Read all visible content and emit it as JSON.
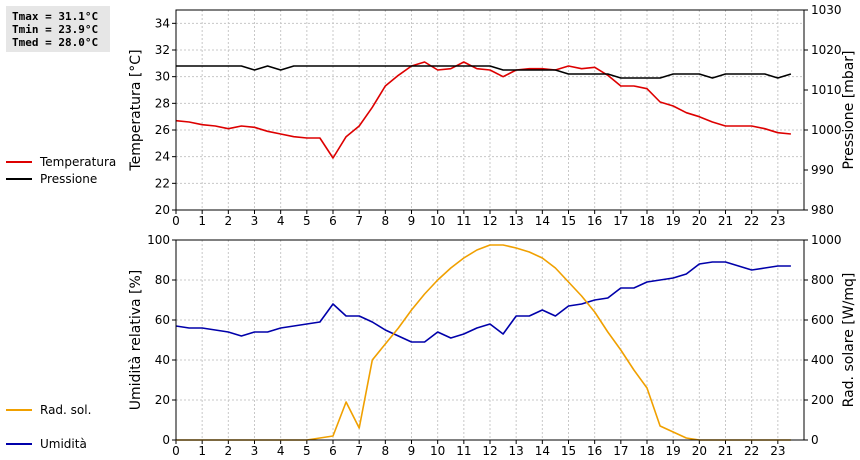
{
  "stats": {
    "tmax": "Tmax = 31.1°C",
    "tmin": "Tmin = 23.9°C",
    "tmed": "Tmed = 28.0°C"
  },
  "chart_data": [
    {
      "type": "line",
      "title": "",
      "xlabel": "",
      "ylabel": "Temperatura [°C]",
      "y2label": "Pressione [mbar]",
      "xlim": [
        0,
        24
      ],
      "xticks": [
        "0",
        "1",
        "2",
        "3",
        "4",
        "5",
        "6",
        "7",
        "8",
        "9",
        "10",
        "11",
        "12",
        "13",
        "14",
        "15",
        "16",
        "17",
        "18",
        "19",
        "20",
        "21",
        "22",
        "23"
      ],
      "ylim": [
        20,
        35
      ],
      "yticks": [
        "20",
        "22",
        "24",
        "26",
        "28",
        "30",
        "32",
        "34"
      ],
      "y2lim": [
        980,
        1030
      ],
      "y2ticks": [
        "980",
        "990",
        "1000",
        "1010",
        "1020",
        "1030"
      ],
      "grid": true,
      "legend": "left",
      "series": [
        {
          "name": "Temperatura",
          "axis": "left",
          "color": "#dd0000",
          "x": [
            0,
            0.5,
            1,
            1.5,
            2,
            2.5,
            3,
            3.5,
            4,
            4.5,
            5,
            5.5,
            6,
            6.5,
            7,
            7.5,
            8,
            8.5,
            9,
            9.5,
            10,
            10.5,
            11,
            11.5,
            12,
            12.5,
            13,
            13.5,
            14,
            14.5,
            15,
            15.5,
            16,
            16.5,
            17,
            17.5,
            18,
            18.5,
            19,
            19.5,
            20,
            20.5,
            21,
            21.5,
            22,
            22.5,
            23,
            23.5
          ],
          "values": [
            26.7,
            26.6,
            26.4,
            26.3,
            26.1,
            26.3,
            26.2,
            25.9,
            25.7,
            25.5,
            25.4,
            25.4,
            23.9,
            25.5,
            26.3,
            27.7,
            29.3,
            30.1,
            30.8,
            31.1,
            30.5,
            30.6,
            31.1,
            30.6,
            30.5,
            30.0,
            30.5,
            30.6,
            30.6,
            30.5,
            30.8,
            30.6,
            30.7,
            30.1,
            29.3,
            29.3,
            29.1,
            28.1,
            27.8,
            27.3,
            27.0,
            26.6,
            26.3,
            26.3,
            26.3,
            26.1,
            25.8,
            25.7
          ]
        },
        {
          "name": "Pressione",
          "axis": "right",
          "color": "#000000",
          "x": [
            0,
            0.5,
            1,
            1.5,
            2,
            2.5,
            3,
            3.5,
            4,
            4.5,
            5,
            5.5,
            6,
            6.5,
            7,
            7.5,
            8,
            8.5,
            9,
            9.5,
            10,
            10.5,
            11,
            11.5,
            12,
            12.5,
            13,
            13.5,
            14,
            14.5,
            15,
            15.5,
            16,
            16.5,
            17,
            17.5,
            18,
            18.5,
            19,
            19.5,
            20,
            20.5,
            21,
            21.5,
            22,
            22.5,
            23,
            23.5
          ],
          "values": [
            1016,
            1016,
            1016,
            1016,
            1016,
            1016,
            1015,
            1016,
            1015,
            1016,
            1016,
            1016,
            1016,
            1016,
            1016,
            1016,
            1016,
            1016,
            1016,
            1016,
            1016,
            1016,
            1016,
            1016,
            1016,
            1015,
            1015,
            1015,
            1015,
            1015,
            1014,
            1014,
            1014,
            1014,
            1013,
            1013,
            1013,
            1013,
            1014,
            1014,
            1014,
            1013,
            1014,
            1014,
            1014,
            1014,
            1013,
            1014
          ]
        }
      ]
    },
    {
      "type": "line",
      "title": "",
      "xlabel": "",
      "ylabel": "Umidità relativa [%]",
      "y2label": "Rad. solare [W/mq]",
      "xlim": [
        0,
        24
      ],
      "xticks": [
        "0",
        "1",
        "2",
        "3",
        "4",
        "5",
        "6",
        "7",
        "8",
        "9",
        "10",
        "11",
        "12",
        "13",
        "14",
        "15",
        "16",
        "17",
        "18",
        "19",
        "20",
        "21",
        "22",
        "23"
      ],
      "ylim": [
        0,
        100
      ],
      "yticks": [
        "0",
        "20",
        "40",
        "60",
        "80",
        "100"
      ],
      "y2lim": [
        0,
        1000
      ],
      "y2ticks": [
        "0",
        "200",
        "400",
        "600",
        "800",
        "1000"
      ],
      "grid": true,
      "legend": "left",
      "series": [
        {
          "name": "Umidità",
          "axis": "left",
          "color": "#0000aa",
          "x": [
            0,
            0.5,
            1,
            1.5,
            2,
            2.5,
            3,
            3.5,
            4,
            4.5,
            5,
            5.5,
            6,
            6.5,
            7,
            7.5,
            8,
            8.5,
            9,
            9.5,
            10,
            10.5,
            11,
            11.5,
            12,
            12.5,
            13,
            13.5,
            14,
            14.5,
            15,
            15.5,
            16,
            16.5,
            17,
            17.5,
            18,
            18.5,
            19,
            19.5,
            20,
            20.5,
            21,
            21.5,
            22,
            22.5,
            23,
            23.5
          ],
          "values": [
            57,
            56,
            56,
            55,
            54,
            52,
            54,
            54,
            56,
            57,
            58,
            59,
            68,
            62,
            62,
            59,
            55,
            52,
            49,
            49,
            54,
            51,
            53,
            56,
            58,
            53,
            62,
            62,
            65,
            62,
            67,
            68,
            70,
            71,
            76,
            76,
            79,
            80,
            81,
            83,
            88,
            89,
            89,
            87,
            85,
            86,
            87,
            87
          ]
        },
        {
          "name": "Rad. sol.",
          "axis": "right",
          "color": "#f0a000",
          "x": [
            0,
            0.5,
            1,
            1.5,
            2,
            2.5,
            3,
            3.5,
            4,
            4.5,
            5,
            5.5,
            6,
            6.5,
            7,
            7.5,
            8,
            8.5,
            9,
            9.5,
            10,
            10.5,
            11,
            11.5,
            12,
            12.5,
            13,
            13.5,
            14,
            14.5,
            15,
            15.5,
            16,
            16.5,
            17,
            17.5,
            18,
            18.5,
            19,
            19.5,
            20,
            20.5,
            21,
            21.5,
            22,
            22.5,
            23,
            23.5
          ],
          "values": [
            0,
            0,
            0,
            0,
            0,
            0,
            0,
            0,
            0,
            0,
            0,
            10,
            20,
            190,
            60,
            400,
            480,
            560,
            650,
            730,
            800,
            860,
            910,
            950,
            975,
            975,
            960,
            940,
            910,
            860,
            790,
            720,
            640,
            540,
            450,
            350,
            260,
            70,
            40,
            10,
            0,
            0,
            0,
            0,
            0,
            0,
            0,
            0
          ]
        }
      ]
    }
  ]
}
